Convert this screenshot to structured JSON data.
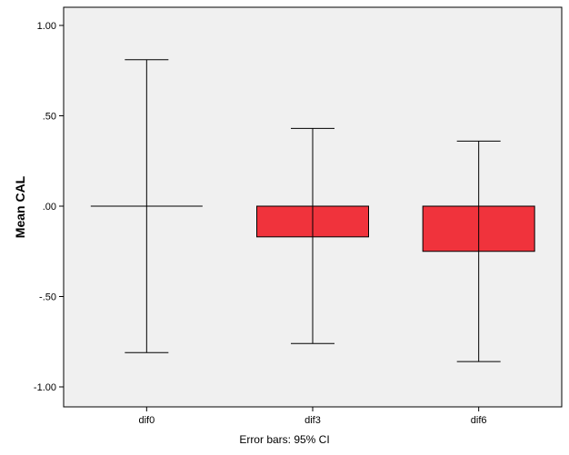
{
  "chart_data": {
    "type": "bar",
    "ylabel": "Mean CAL",
    "xlabel": "",
    "footnote": "Error bars: 95% CI",
    "categories": [
      "dif0",
      "dif3",
      "dif6"
    ],
    "values": [
      0.0,
      -0.17,
      -0.25
    ],
    "error_bars": [
      {
        "low": -0.81,
        "high": 0.81
      },
      {
        "low": -0.76,
        "high": 0.43
      },
      {
        "low": -0.86,
        "high": 0.36
      }
    ],
    "ylim": [
      -1.1,
      1.1
    ],
    "yticks": [
      1.0,
      0.5,
      0.0,
      -0.5,
      -1.0
    ],
    "ytick_labels": [
      "1.00",
      ".50",
      ".00",
      "-.50",
      "-1.00"
    ],
    "grid": false,
    "bar_color": "#f0333c",
    "plot_background": "#f0f0f0"
  }
}
